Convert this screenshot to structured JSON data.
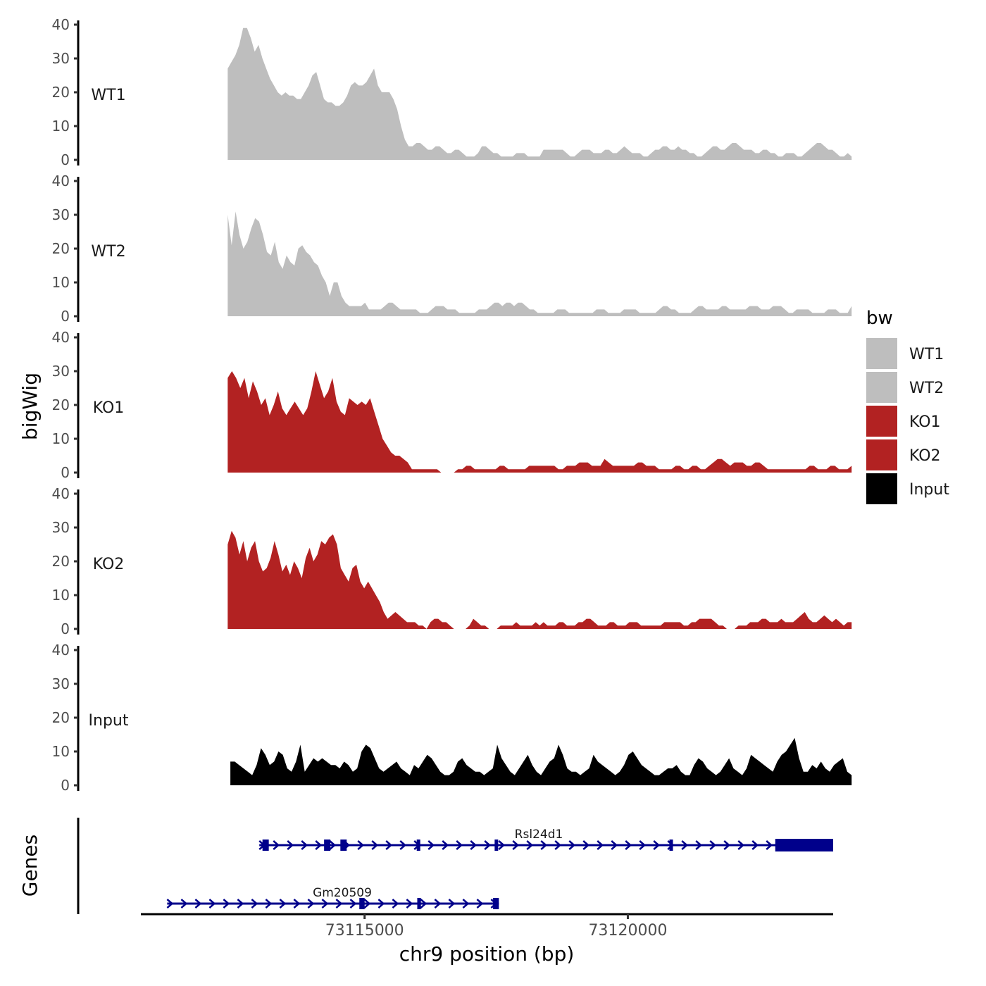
{
  "chart_data": {
    "type": "area",
    "title": "",
    "ylabel": "bigWig",
    "gene_panel_label": "Genes",
    "xlabel": "chr9 position (bp)",
    "xlim": [
      73110750,
      73123900
    ],
    "x_ticks": [
      {
        "value": 73115000,
        "label": "73115000"
      },
      {
        "value": 73120000,
        "label": "73120000"
      }
    ],
    "ylim": [
      0,
      40
    ],
    "y_ticks": [
      {
        "value": 0,
        "label": "0"
      },
      {
        "value": 10,
        "label": "10"
      },
      {
        "value": 20,
        "label": "20"
      },
      {
        "value": 30,
        "label": "30"
      },
      {
        "value": 40,
        "label": "40"
      }
    ],
    "legend": {
      "title": "bw",
      "position": "right",
      "entries": [
        {
          "label": "WT1",
          "color": "#BEBEBE"
        },
        {
          "label": "WT2",
          "color": "#BEBEBE"
        },
        {
          "label": "KO1",
          "color": "#B22222"
        },
        {
          "label": "KO2",
          "color": "#B22222"
        },
        {
          "label": "Input",
          "color": "#000000"
        }
      ]
    },
    "series": [
      {
        "name": "WT1",
        "color": "#BEBEBE",
        "x_start": 73112400,
        "x_end": 73124250,
        "values": [
          27,
          29,
          31,
          34,
          39,
          39,
          36,
          32,
          34,
          30,
          27,
          24,
          22,
          20,
          19,
          20,
          19,
          19,
          18,
          18,
          20,
          22,
          25,
          26,
          22,
          18,
          17,
          17,
          16,
          16,
          17,
          19,
          22,
          23,
          22,
          22,
          23,
          25,
          27,
          22,
          20,
          20,
          20,
          18,
          15,
          10,
          6,
          4,
          4,
          5,
          5,
          4,
          3,
          3,
          4,
          4,
          3,
          2,
          2,
          3,
          3,
          2,
          1,
          1,
          1,
          2,
          4,
          4,
          3,
          2,
          2,
          1,
          1,
          1,
          1,
          2,
          2,
          2,
          1,
          1,
          1,
          1,
          3,
          3,
          3,
          3,
          3,
          3,
          2,
          1,
          1,
          2,
          3,
          3,
          3,
          2,
          2,
          2,
          3,
          3,
          2,
          2,
          3,
          4,
          3,
          2,
          2,
          2,
          1,
          1,
          2,
          3,
          3,
          4,
          4,
          3,
          3,
          4,
          3,
          3,
          2,
          2,
          1,
          1,
          2,
          3,
          4,
          4,
          3,
          3,
          4,
          5,
          5,
          4,
          3,
          3,
          3,
          2,
          2,
          3,
          3,
          2,
          2,
          1,
          1,
          2,
          2,
          2,
          1,
          1,
          2,
          3,
          4,
          5,
          5,
          4,
          3,
          3,
          2,
          1,
          1,
          2,
          1
        ]
      },
      {
        "name": "WT2",
        "color": "#BEBEBE",
        "x_start": 73112400,
        "x_end": 73124250,
        "values": [
          30,
          21,
          31,
          24,
          20,
          22,
          26,
          29,
          28,
          24,
          19,
          18,
          22,
          16,
          14,
          18,
          16,
          15,
          20,
          21,
          19,
          18,
          16,
          15,
          12,
          10,
          6,
          10,
          10,
          6,
          4,
          3,
          3,
          3,
          3,
          4,
          2,
          2,
          2,
          2,
          3,
          4,
          4,
          3,
          2,
          2,
          2,
          2,
          2,
          1,
          1,
          1,
          2,
          3,
          3,
          3,
          2,
          2,
          2,
          1,
          1,
          1,
          1,
          1,
          2,
          2,
          2,
          3,
          4,
          4,
          3,
          4,
          4,
          3,
          4,
          4,
          3,
          2,
          2,
          1,
          1,
          1,
          1,
          1,
          2,
          2,
          2,
          1,
          1,
          1,
          1,
          1,
          1,
          1,
          2,
          2,
          2,
          1,
          1,
          1,
          1,
          2,
          2,
          2,
          2,
          1,
          1,
          1,
          1,
          1,
          2,
          3,
          3,
          2,
          2,
          1,
          1,
          1,
          1,
          2,
          3,
          3,
          2,
          2,
          2,
          2,
          3,
          3,
          2,
          2,
          2,
          2,
          2,
          3,
          3,
          3,
          2,
          2,
          2,
          3,
          3,
          3,
          2,
          1,
          1,
          2,
          2,
          2,
          2,
          1,
          1,
          1,
          1,
          2,
          2,
          2,
          1,
          1,
          1,
          3
        ]
      },
      {
        "name": "KO1",
        "color": "#B22222",
        "x_start": 73112400,
        "x_end": 73124250,
        "values": [
          28,
          30,
          28,
          25,
          28,
          22,
          27,
          24,
          20,
          22,
          17,
          20,
          24,
          19,
          17,
          19,
          21,
          19,
          17,
          19,
          24,
          30,
          26,
          22,
          24,
          28,
          21,
          18,
          17,
          22,
          21,
          20,
          21,
          20,
          22,
          18,
          14,
          10,
          8,
          6,
          5,
          5,
          4,
          3,
          1,
          1,
          1,
          1,
          1,
          1,
          1,
          0,
          0,
          0,
          0,
          1,
          1,
          2,
          2,
          1,
          1,
          1,
          1,
          1,
          1,
          2,
          2,
          1,
          1,
          1,
          1,
          1,
          2,
          2,
          2,
          2,
          2,
          2,
          2,
          1,
          1,
          2,
          2,
          2,
          3,
          3,
          3,
          2,
          2,
          2,
          4,
          3,
          2,
          2,
          2,
          2,
          2,
          2,
          3,
          3,
          2,
          2,
          2,
          1,
          1,
          1,
          1,
          2,
          2,
          1,
          1,
          2,
          2,
          1,
          1,
          2,
          3,
          4,
          4,
          3,
          2,
          3,
          3,
          3,
          2,
          2,
          3,
          3,
          2,
          1,
          1,
          1,
          1,
          1,
          1,
          1,
          1,
          1,
          1,
          2,
          2,
          1,
          1,
          1,
          2,
          2,
          1,
          1,
          1,
          2
        ]
      },
      {
        "name": "KO2",
        "color": "#B22222",
        "x_start": 73112400,
        "x_end": 73124250,
        "values": [
          25,
          29,
          27,
          22,
          26,
          20,
          24,
          26,
          20,
          17,
          18,
          21,
          26,
          22,
          17,
          19,
          16,
          20,
          18,
          15,
          21,
          24,
          20,
          22,
          26,
          25,
          27,
          28,
          25,
          18,
          16,
          14,
          18,
          19,
          14,
          12,
          14,
          12,
          10,
          8,
          5,
          3,
          4,
          5,
          4,
          3,
          2,
          2,
          2,
          1,
          1,
          0,
          2,
          3,
          3,
          2,
          2,
          1,
          0,
          0,
          0,
          0,
          1,
          3,
          2,
          1,
          1,
          0,
          0,
          0,
          1,
          1,
          1,
          1,
          2,
          1,
          1,
          1,
          1,
          2,
          1,
          2,
          1,
          1,
          1,
          2,
          2,
          1,
          1,
          1,
          2,
          2,
          3,
          3,
          2,
          1,
          1,
          1,
          2,
          2,
          1,
          1,
          1,
          2,
          2,
          2,
          1,
          1,
          1,
          1,
          1,
          1,
          2,
          2,
          2,
          2,
          2,
          1,
          1,
          2,
          2,
          3,
          3,
          3,
          3,
          2,
          1,
          1,
          0,
          0,
          0,
          1,
          1,
          1,
          2,
          2,
          2,
          3,
          3,
          2,
          2,
          2,
          3,
          2,
          2,
          2,
          3,
          4,
          5,
          3,
          2,
          2,
          3,
          4,
          3,
          2,
          3,
          2,
          1,
          2,
          2
        ]
      },
      {
        "name": "Input",
        "color": "#000000",
        "x_start": 73112450,
        "x_end": 73124250,
        "values": [
          7,
          7,
          6,
          5,
          4,
          3,
          6,
          11,
          9,
          6,
          7,
          10,
          9,
          5,
          4,
          7,
          12,
          4,
          6,
          8,
          7,
          8,
          7,
          6,
          6,
          5,
          7,
          6,
          4,
          5,
          10,
          12,
          11,
          8,
          5,
          4,
          5,
          6,
          7,
          5,
          4,
          3,
          6,
          5,
          7,
          9,
          8,
          6,
          4,
          3,
          3,
          4,
          7,
          8,
          6,
          5,
          4,
          4,
          3,
          4,
          5,
          12,
          8,
          6,
          4,
          3,
          5,
          7,
          9,
          6,
          4,
          3,
          5,
          7,
          8,
          12,
          9,
          5,
          4,
          4,
          3,
          4,
          5,
          9,
          7,
          6,
          5,
          4,
          3,
          4,
          6,
          9,
          10,
          8,
          6,
          5,
          4,
          3,
          3,
          4,
          5,
          5,
          6,
          4,
          3,
          3,
          6,
          8,
          7,
          5,
          4,
          3,
          4,
          6,
          8,
          5,
          4,
          3,
          5,
          9,
          8,
          7,
          6,
          5,
          4,
          7,
          9,
          10,
          12,
          14,
          8,
          4,
          4,
          6,
          5,
          7,
          5,
          4,
          6,
          7,
          8,
          4,
          3
        ]
      }
    ],
    "genes": [
      {
        "name": "Rsl24d1",
        "strand": "+",
        "start": 73113000,
        "end": 73123900,
        "exons": [
          [
            73113060,
            73113180
          ],
          [
            73114230,
            73114350
          ],
          [
            73114540,
            73114660
          ],
          [
            73115990,
            73116050
          ],
          [
            73117470,
            73117530
          ],
          [
            73120790,
            73120850
          ],
          [
            73122800,
            73123900
          ]
        ]
      },
      {
        "name": "Gm20509",
        "strand": "+",
        "start": 73111250,
        "end": 73117550,
        "exons": [
          [
            73114900,
            73115000
          ],
          [
            73116000,
            73116070
          ],
          [
            73117440,
            73117550
          ]
        ]
      }
    ]
  }
}
